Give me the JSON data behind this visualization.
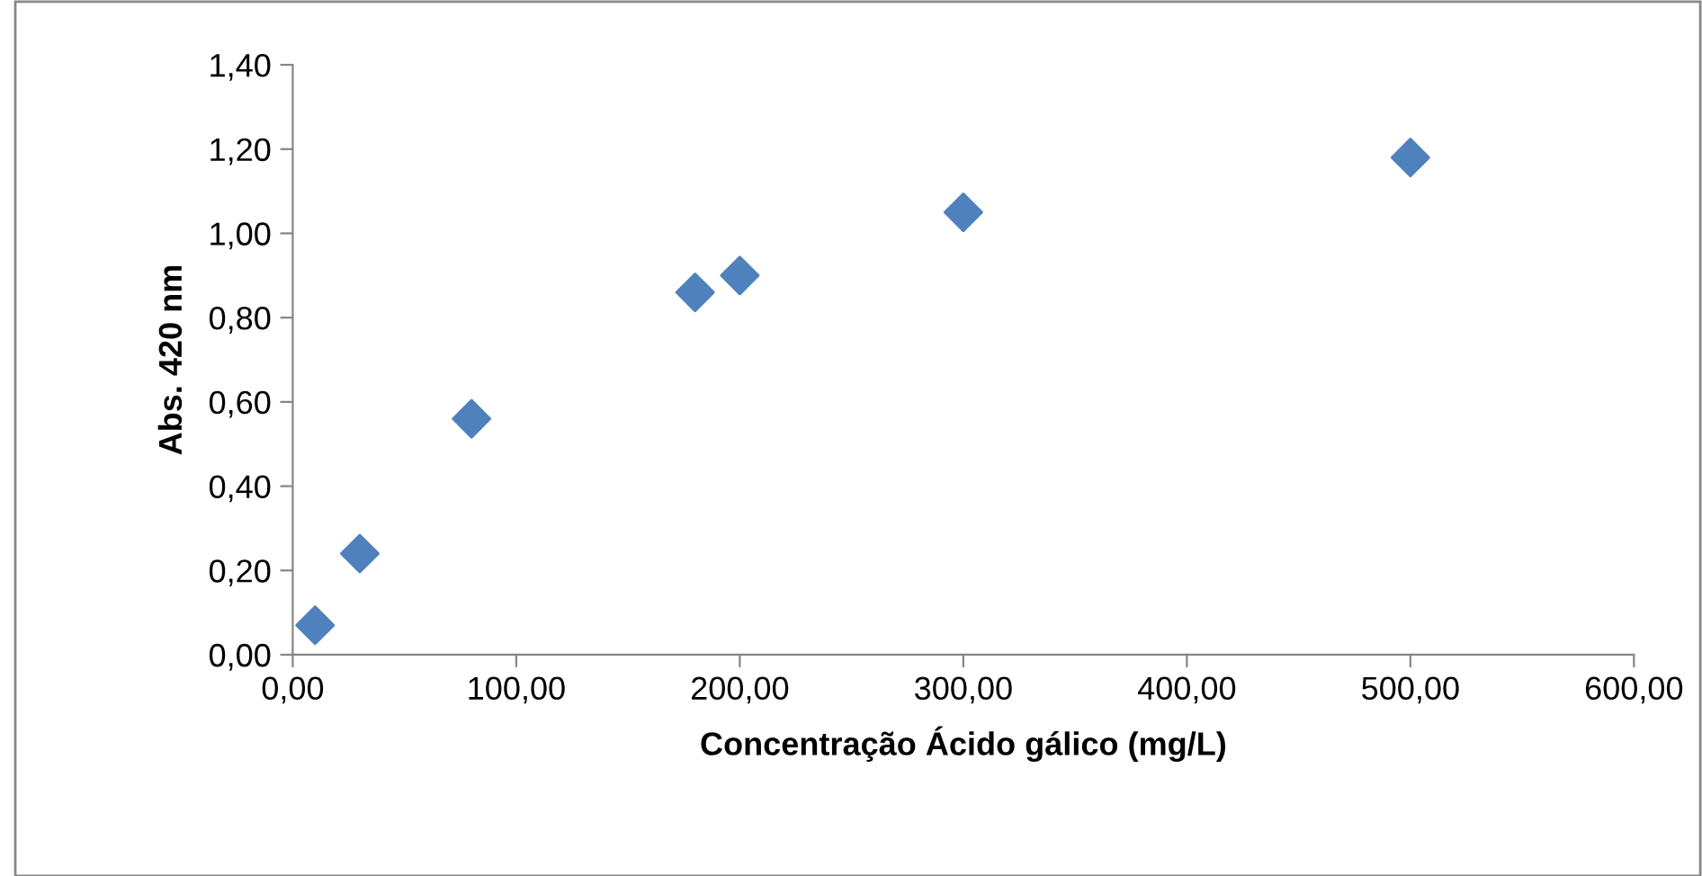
{
  "chart_data": {
    "type": "scatter",
    "xlabel": "Concentração Ácido gálico (mg/L)",
    "ylabel": "Abs. 420 nm",
    "x": [
      10,
      30,
      80,
      180,
      200,
      300,
      500
    ],
    "series": [
      {
        "color": "#4f81bd",
        "values": [
          0.07,
          0.24,
          0.56,
          0.86,
          0.9,
          1.05,
          1.18
        ]
      }
    ],
    "marker": "diamond",
    "grid": false,
    "legend": false,
    "xlim": [
      0,
      600
    ],
    "ylim": [
      0,
      1.4
    ],
    "xticks": [
      {
        "value": 0,
        "label": "0,00"
      },
      {
        "value": 100,
        "label": "100,00"
      },
      {
        "value": 200,
        "label": "200,00"
      },
      {
        "value": 300,
        "label": "300,00"
      },
      {
        "value": 400,
        "label": "400,00"
      },
      {
        "value": 500,
        "label": "500,00"
      },
      {
        "value": 600,
        "label": "600,00"
      }
    ],
    "yticks": [
      {
        "value": 0,
        "label": "0,00"
      },
      {
        "value": 0.2,
        "label": "0,20"
      },
      {
        "value": 0.4,
        "label": "0,40"
      },
      {
        "value": 0.6,
        "label": "0,60"
      },
      {
        "value": 0.8,
        "label": "0,80"
      },
      {
        "value": 1.0,
        "label": "1,00"
      },
      {
        "value": 1.2,
        "label": "1,20"
      },
      {
        "value": 1.4,
        "label": "1,40"
      }
    ]
  }
}
